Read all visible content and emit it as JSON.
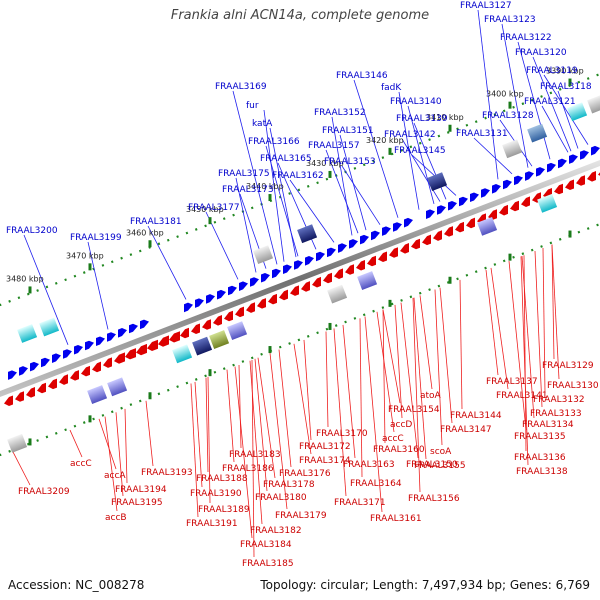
{
  "title": "Frankia alni ACN14a, complete genome",
  "footer": {
    "accession": "Accession: NC_008278",
    "topology": "Topology: circular; Length: 7,497,934 bp; Genes: 6,769"
  },
  "colors": {
    "forward": "#0000ee",
    "reverse": "#dd0000",
    "backbone": "#808080",
    "tick": "#228822"
  },
  "ticks": [
    {
      "label": "3390 kbp",
      "kbp": 3390
    },
    {
      "label": "3400 kbp",
      "kbp": 3400
    },
    {
      "label": "3410 kbp",
      "kbp": 3410
    },
    {
      "label": "3420 kbp",
      "kbp": 3420
    },
    {
      "label": "3430 kbp",
      "kbp": 3430
    },
    {
      "label": "3440 kbp",
      "kbp": 3440
    },
    {
      "label": "3450 kbp",
      "kbp": 3450
    },
    {
      "label": "3460 kbp",
      "kbp": 3460
    },
    {
      "label": "3470 kbp",
      "kbp": 3470
    },
    {
      "label": "3480 kbp",
      "kbp": 3480
    }
  ],
  "forward_labels": [
    "FRAAL3127",
    "FRAAL3123",
    "FRAAL3122",
    "FRAAL3120",
    "FRAAL3119",
    "FRAAL3118",
    "FRAAL3121",
    "FRAAL3128",
    "FRAAL3131",
    "FRAAL3146",
    "fadK",
    "FRAAL3140",
    "FRAAL3139",
    "FRAAL3142",
    "FRAAL3145",
    "FRAAL3152",
    "FRAAL3151",
    "FRAAL3157",
    "FRAAL3153",
    "FRAAL3169",
    "fur",
    "katA",
    "FRAAL3166",
    "FRAAL3165",
    "FRAAL3162",
    "FRAAL3175",
    "FRAAL3173",
    "FRAAL3177",
    "FRAAL3181",
    "FRAAL3200",
    "FRAAL3199"
  ],
  "reverse_labels": [
    "FRAAL3129",
    "FRAAL3130",
    "FRAAL3137",
    "FRAAL3141",
    "FRAAL3132",
    "FRAAL3133",
    "FRAAL3134",
    "FRAAL3135",
    "FRAAL3136",
    "FRAAL3138",
    "atoA",
    "FRAAL3154",
    "FRAAL3144",
    "accD",
    "FRAAL3147",
    "accC",
    "FRAAL3160",
    "scoA",
    "FRAAL3155",
    "FRAAL3150",
    "FRAAL3170",
    "FRAAL3172",
    "FRAAL3163",
    "FRAAL3174",
    "FRAAL3164",
    "FRAAL3156",
    "FRAAL3171",
    "FRAAL3161",
    "FRAAL3183",
    "FRAAL3186",
    "FRAAL3176",
    "FRAAL3178",
    "FRAAL3188",
    "FRAAL3190",
    "FRAAL3180",
    "FRAAL3179",
    "FRAAL3189",
    "FRAAL3191",
    "FRAAL3182",
    "FRAAL3184",
    "FRAAL3185",
    "FRAAL3193",
    "accC",
    "accA",
    "FRAAL3194",
    "FRAAL3195",
    "accB",
    "FRAAL3209"
  ]
}
